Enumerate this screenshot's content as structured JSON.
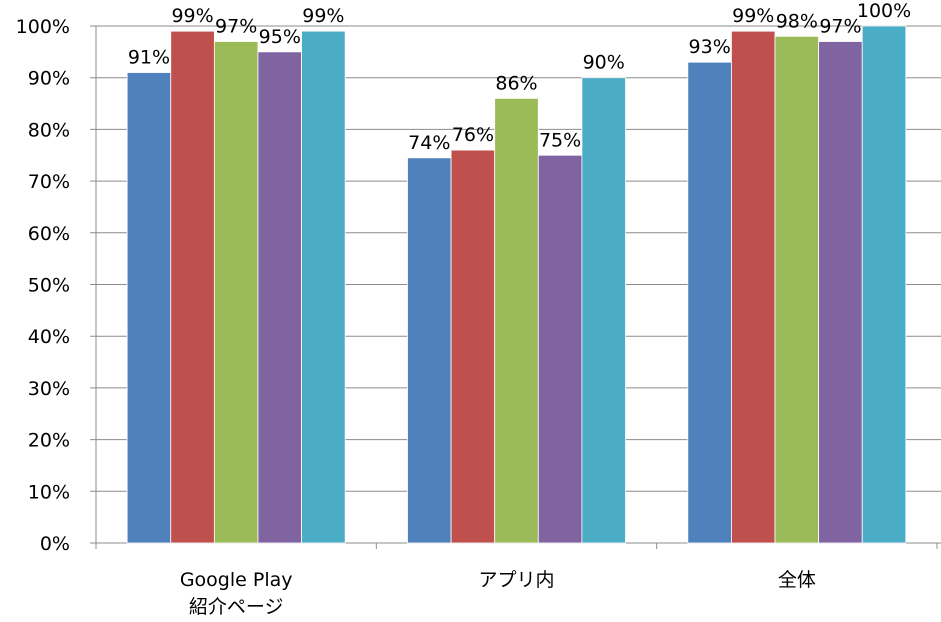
{
  "chart_data": {
    "type": "bar",
    "categories": [
      [
        "Google Play",
        "紹介ページ"
      ],
      [
        "アプリ内"
      ],
      [
        "全体"
      ]
    ],
    "series": [
      {
        "color": "#4f81bd",
        "values": [
          91,
          74.5,
          93
        ],
        "labels": [
          "91%",
          "74%",
          "93%"
        ]
      },
      {
        "color": "#c0504d",
        "values": [
          99,
          76,
          99
        ],
        "labels": [
          "99%",
          "76%",
          "99%"
        ]
      },
      {
        "color": "#9bbb59",
        "values": [
          97,
          86,
          98
        ],
        "labels": [
          "97%",
          "86%",
          "98%"
        ]
      },
      {
        "color": "#8064a2",
        "values": [
          95,
          75,
          97
        ],
        "labels": [
          "95%",
          "75%",
          "97%"
        ]
      },
      {
        "color": "#4bacc6",
        "values": [
          99,
          90,
          100
        ],
        "labels": [
          "99%",
          "90%",
          "100%"
        ]
      }
    ],
    "yticks": [
      "0%",
      "10%",
      "20%",
      "30%",
      "40%",
      "50%",
      "60%",
      "70%",
      "80%",
      "90%",
      "100%"
    ],
    "ylim": [
      0,
      100
    ],
    "grid": true,
    "legend": "none"
  }
}
